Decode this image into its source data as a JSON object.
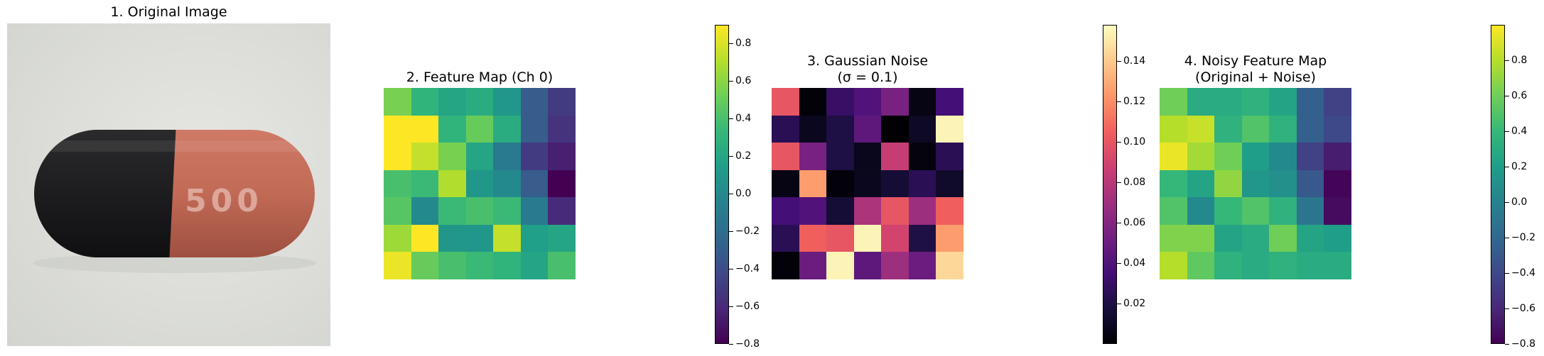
{
  "panels": {
    "original": {
      "title": "1. Original Image",
      "imprint": "500"
    },
    "feature": {
      "title": "2. Feature Map (Ch 0)"
    },
    "noise": {
      "title_line1": "3. Gaussian Noise",
      "title_line2": "(σ = 0.1)"
    },
    "noisy": {
      "title_line1": "4. Noisy Feature Map",
      "title_line2": "(Original + Noise)"
    }
  },
  "colors": {
    "capsule_dark": "#1c1c1e",
    "capsule_body": "#c16a56",
    "viridis": [
      "#440154",
      "#482878",
      "#3e4989",
      "#31688e",
      "#26828e",
      "#1f9e89",
      "#35b779",
      "#6ece58",
      "#b5de2b",
      "#fde725"
    ],
    "magma": [
      "#000004",
      "#180f3d",
      "#440f76",
      "#721f81",
      "#9e2f7f",
      "#cd4071",
      "#f1605d",
      "#fd9668",
      "#feca8d",
      "#fcfdbf"
    ]
  },
  "chart_data": [
    {
      "type": "heatmap",
      "title": "2. Feature Map (Ch 0)",
      "colormap": "viridis",
      "vmin": -0.8,
      "vmax": 0.9,
      "colorbar_ticks": [
        0.8,
        0.6,
        0.4,
        0.2,
        0.0,
        -0.2,
        -0.4,
        -0.6,
        -0.8
      ],
      "colorbar_tick_labels": [
        "0.8",
        "0.6",
        "0.4",
        "0.2",
        "0.0",
        "−0.2",
        "−0.4",
        "−0.6",
        "−0.8"
      ],
      "values": [
        [
          0.55,
          0.3,
          0.2,
          0.25,
          0.1,
          -0.3,
          -0.5
        ],
        [
          0.9,
          0.9,
          0.3,
          0.5,
          0.25,
          -0.3,
          -0.55
        ],
        [
          0.9,
          0.75,
          0.55,
          0.2,
          -0.1,
          -0.5,
          -0.65
        ],
        [
          0.4,
          0.35,
          0.7,
          0.1,
          0.0,
          -0.3,
          -0.8
        ],
        [
          0.45,
          0.0,
          0.35,
          0.4,
          0.35,
          -0.1,
          -0.6
        ],
        [
          0.65,
          0.9,
          0.1,
          0.1,
          0.75,
          0.15,
          0.2
        ],
        [
          0.85,
          0.5,
          0.4,
          0.35,
          0.3,
          0.2,
          0.4
        ]
      ]
    },
    {
      "type": "heatmap",
      "title": "3. Gaussian Noise (σ = 0.1)",
      "colormap": "magma",
      "vmin": 0.0,
      "vmax": 0.158,
      "colorbar_ticks": [
        0.14,
        0.12,
        0.1,
        0.08,
        0.06,
        0.04,
        0.02
      ],
      "colorbar_tick_labels": [
        "0.14",
        "0.12",
        "0.10",
        "0.08",
        "0.06",
        "0.04",
        "0.02"
      ],
      "values": [
        [
          0.1,
          0.002,
          0.03,
          0.04,
          0.055,
          0.005,
          0.035
        ],
        [
          0.025,
          0.008,
          0.02,
          0.045,
          0.0,
          0.01,
          0.155
        ],
        [
          0.1,
          0.055,
          0.02,
          0.007,
          0.085,
          0.003,
          0.025
        ],
        [
          0.005,
          0.125,
          0.002,
          0.008,
          0.015,
          0.025,
          0.012
        ],
        [
          0.035,
          0.04,
          0.015,
          0.075,
          0.1,
          0.07,
          0.105
        ],
        [
          0.025,
          0.105,
          0.1,
          0.155,
          0.09,
          0.02,
          0.125
        ],
        [
          0.002,
          0.05,
          0.155,
          0.045,
          0.07,
          0.05,
          0.145
        ]
      ]
    },
    {
      "type": "heatmap",
      "title": "4. Noisy Feature Map (Original + Noise)",
      "colormap": "viridis",
      "vmin": -0.8,
      "vmax": 1.0,
      "colorbar_ticks": [
        0.8,
        0.6,
        0.4,
        0.2,
        0.0,
        -0.2,
        -0.4,
        -0.6,
        -0.8
      ],
      "colorbar_tick_labels": [
        "0.8",
        "0.6",
        "0.4",
        "0.2",
        "0.0",
        "−0.2",
        "−0.4",
        "−0.6",
        "−0.8"
      ],
      "values": [
        [
          0.6,
          0.3,
          0.3,
          0.35,
          0.25,
          -0.25,
          -0.45
        ],
        [
          0.8,
          0.85,
          0.35,
          0.5,
          0.35,
          -0.25,
          -0.4
        ],
        [
          0.95,
          0.75,
          0.6,
          0.2,
          0.05,
          -0.45,
          -0.65
        ],
        [
          0.4,
          0.25,
          0.7,
          0.15,
          0.1,
          -0.3,
          -0.78
        ],
        [
          0.5,
          0.05,
          0.4,
          0.5,
          0.35,
          -0.1,
          -0.75
        ],
        [
          0.65,
          0.65,
          0.25,
          0.3,
          0.6,
          0.25,
          0.2
        ],
        [
          0.8,
          0.55,
          0.35,
          0.3,
          0.35,
          0.3,
          0.3
        ]
      ]
    }
  ]
}
